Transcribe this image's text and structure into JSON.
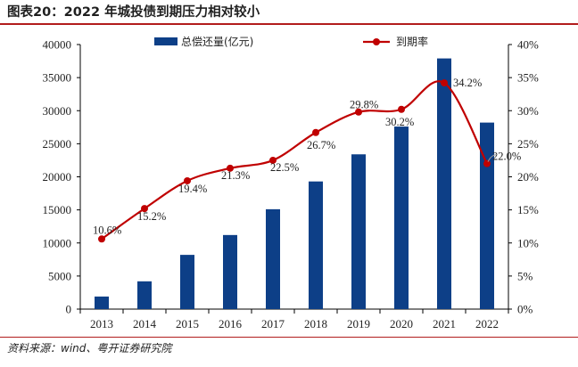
{
  "header": {
    "title": "图表20：2022 年城投债到期压力相对较小"
  },
  "footer": {
    "source": "资料来源：wind、粤开证券研究院"
  },
  "colors": {
    "bar": "#0d3f87",
    "line": "#c00000",
    "rule": "#b21c1c"
  },
  "chart_data": {
    "type": "bar+line",
    "categories": [
      "2013",
      "2014",
      "2015",
      "2016",
      "2017",
      "2018",
      "2019",
      "2020",
      "2021",
      "2022"
    ],
    "series": [
      {
        "name": "总偿还量(亿元)",
        "type": "bar",
        "axis": "left",
        "values": [
          1900,
          4200,
          8200,
          11200,
          15100,
          19300,
          23400,
          27600,
          37900,
          28200
        ]
      },
      {
        "name": "到期率",
        "type": "line",
        "axis": "right",
        "values": [
          10.6,
          15.2,
          19.4,
          21.3,
          22.5,
          26.7,
          29.8,
          30.2,
          34.2,
          22.0
        ],
        "labels": [
          "10.6%",
          "15.2%",
          "19.4%",
          "21.3%",
          "22.5%",
          "26.7%",
          "29.8%",
          "30.2%",
          "34.2%",
          "22.0%"
        ]
      }
    ],
    "left_axis": {
      "min": 0,
      "max": 40000,
      "ticks": [
        "0",
        "5000",
        "10000",
        "15000",
        "20000",
        "25000",
        "30000",
        "35000",
        "40000"
      ]
    },
    "right_axis": {
      "min": 0,
      "max": 40,
      "ticks": [
        "0%",
        "5%",
        "10%",
        "15%",
        "20%",
        "25%",
        "30%",
        "35%",
        "40%"
      ]
    },
    "grid": false,
    "legend_position": "top"
  }
}
